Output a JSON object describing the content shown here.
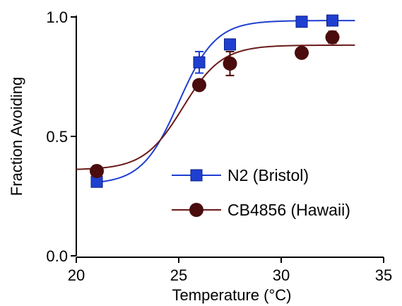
{
  "chart_data": {
    "type": "scatter",
    "xlabel": "Temperature (°C)",
    "ylabel": "Fraction Avoiding",
    "xlim": [
      20,
      35
    ],
    "ylim": [
      0,
      1
    ],
    "x_ticks": [
      20,
      25,
      30,
      35
    ],
    "x_tick_labels": [
      "20",
      "25",
      "30",
      "35"
    ],
    "y_ticks": [
      0,
      0.5,
      1
    ],
    "y_tick_labels": [
      "0.0",
      "0.5",
      "1.0"
    ],
    "grid": false,
    "legend_position": "center-right",
    "series": [
      {
        "name": "N2 (Bristol)",
        "marker": "square",
        "color": "#1f3fd1",
        "line_color": "#1f3fd1",
        "points": [
          {
            "x": 21,
            "y": 0.31,
            "err": 0.01
          },
          {
            "x": 26,
            "y": 0.81,
            "err": 0.045
          },
          {
            "x": 27.5,
            "y": 0.885,
            "err": 0.02
          },
          {
            "x": 31,
            "y": 0.98,
            "err": 0.008
          },
          {
            "x": 32.5,
            "y": 0.985,
            "err": 0.008
          }
        ],
        "fit": {
          "bottom": 0.3,
          "top": 0.985,
          "x50": 25.0,
          "slope": 0.9,
          "x_range": [
            21,
            33.6
          ]
        }
      },
      {
        "name": "CB4856 (Hawaii)",
        "marker": "circle",
        "color": "#4a0c0c",
        "line_color": "#6b1a1a",
        "points": [
          {
            "x": 21,
            "y": 0.355,
            "err": 0.02
          },
          {
            "x": 26,
            "y": 0.715,
            "err": 0.02
          },
          {
            "x": 27.5,
            "y": 0.805,
            "err": 0.05
          },
          {
            "x": 31,
            "y": 0.85,
            "err": 0.01
          },
          {
            "x": 32.5,
            "y": 0.915,
            "err": 0.025
          }
        ],
        "fit": {
          "bottom": 0.36,
          "top": 0.882,
          "x50": 25.2,
          "slope": 0.95,
          "x_range": [
            20,
            33.6
          ]
        }
      }
    ]
  }
}
